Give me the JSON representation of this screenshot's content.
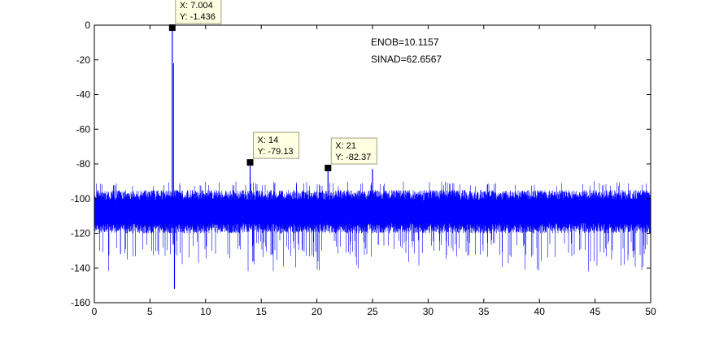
{
  "chart_data": {
    "type": "line",
    "title": "",
    "xlabel": "",
    "ylabel": "",
    "xlim": [
      0,
      50
    ],
    "ylim": [
      -160,
      0
    ],
    "x_ticks": [
      0,
      5,
      10,
      15,
      20,
      25,
      30,
      35,
      40,
      45,
      50
    ],
    "y_ticks": [
      0,
      -20,
      -40,
      -60,
      -80,
      -100,
      -120,
      -140,
      -160
    ],
    "x_tick_labels": [
      "0",
      "5",
      "10",
      "15",
      "20",
      "25",
      "30",
      "35",
      "40",
      "45",
      "50"
    ],
    "y_tick_labels": [
      "0",
      "-20",
      "-40",
      "-60",
      "-80",
      "-100",
      "-120",
      "-140",
      "-160"
    ],
    "grid": false,
    "series": [
      {
        "color": "#0000ff",
        "noise_floor": {
          "x_range": [
            0,
            50
          ],
          "median": -108,
          "typical_band": [
            -120,
            -95
          ],
          "min_spike": -142,
          "max_spike": -90
        },
        "peaks": [
          {
            "x": 7.004,
            "y": -1.436
          },
          {
            "x": 14,
            "y": -79.13
          },
          {
            "x": 21,
            "y": -82.37
          },
          {
            "x": 25,
            "y": -83
          },
          {
            "x": 7.2,
            "y": -152
          }
        ]
      }
    ],
    "annotations": [
      {
        "text": "ENOB=10.1157"
      },
      {
        "text": "SINAD=62.6567"
      }
    ],
    "datatips": [
      {
        "x": 7.004,
        "y": -1.436,
        "line1": "X: 7.004",
        "line2": "Y: -1.436"
      },
      {
        "x": 14,
        "y": -79.13,
        "line1": "X: 14",
        "line2": "Y: -79.13"
      },
      {
        "x": 21,
        "y": -82.37,
        "line1": "X: 21",
        "line2": "Y: -82.37"
      }
    ]
  }
}
